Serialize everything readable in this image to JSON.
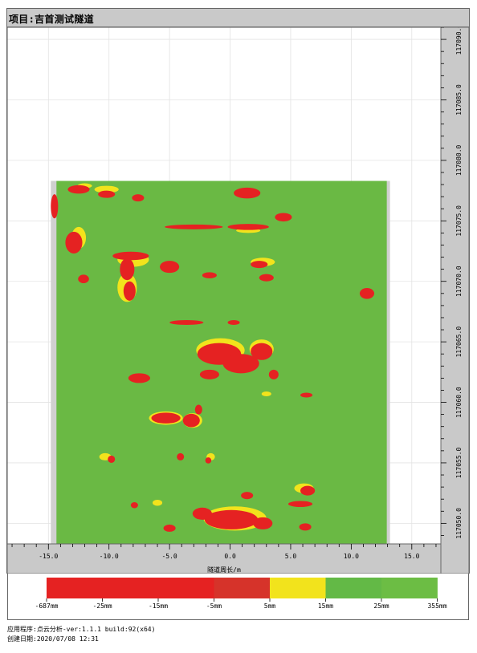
{
  "header": {
    "title": "项目:吉首测试隧道"
  },
  "chart_data": {
    "type": "heatmap",
    "title": "项目:吉首测试隧道",
    "xlabel": "隧道周长/m",
    "ylabel": "",
    "xlim": [
      -18.4,
      17.4
    ],
    "ylim": [
      117048.3,
      117091.0
    ],
    "grid": true,
    "x_ticks": [
      -15,
      -10,
      -5,
      0,
      5,
      10,
      15
    ],
    "x_tick_labels": [
      "-15.0",
      "-10.0",
      "-5.0",
      "0.0",
      "5.0",
      "10.0",
      "15.0"
    ],
    "y_ticks": [
      117050,
      117055,
      117060,
      117065,
      117070,
      117075,
      117080,
      117085,
      117090
    ],
    "y_tick_labels": [
      "117050.0",
      "117055.0",
      "117060.0",
      "117065.0",
      "117070.0",
      "117075.0",
      "117080.0",
      "117085.0",
      "117090.0"
    ],
    "scan_extent": {
      "x": [
        -14.8,
        13.2
      ],
      "y": [
        117048.3,
        117078.3
      ]
    },
    "colorscale": {
      "bins": [
        {
          "from": "-687mm",
          "to": "-25mm",
          "color": "#e52222"
        },
        {
          "from": "-25mm",
          "to": "-15mm",
          "color": "#e52222"
        },
        {
          "from": "-15mm",
          "to": "-5mm",
          "color": "#e52222"
        },
        {
          "from": "-5mm",
          "to": "5mm",
          "color": "#d6332a"
        },
        {
          "from": "5mm",
          "to": "15mm",
          "color": "#f2e31c"
        },
        {
          "from": "15mm",
          "to": "25mm",
          "color": "#63b946"
        },
        {
          "from": "25mm",
          "to": "355mm",
          "color": "#6cbd44"
        }
      ],
      "labels": [
        "-687mm",
        "-25mm",
        "-15mm",
        "-5mm",
        "5mm",
        "15mm",
        "25mm",
        "355mm"
      ]
    },
    "background_color": "#6ab944",
    "margin_color": "#d0d0d0",
    "red_regions": [
      {
        "x": -12.5,
        "y": 117077.6,
        "rx": 0.9,
        "ry": 0.35
      },
      {
        "x": -10.2,
        "y": 117077.2,
        "rx": 0.7,
        "ry": 0.3
      },
      {
        "x": -7.6,
        "y": 117076.9,
        "rx": 0.5,
        "ry": 0.3
      },
      {
        "x": 1.4,
        "y": 117077.3,
        "rx": 1.1,
        "ry": 0.45
      },
      {
        "x": -3.0,
        "y": 117074.5,
        "rx": 2.4,
        "ry": 0.2
      },
      {
        "x": 1.5,
        "y": 117074.5,
        "rx": 1.7,
        "ry": 0.25
      },
      {
        "x": 4.4,
        "y": 117075.3,
        "rx": 0.7,
        "ry": 0.35
      },
      {
        "x": -12.9,
        "y": 117073.2,
        "rx": 0.7,
        "ry": 0.9
      },
      {
        "x": -8.2,
        "y": 117072.1,
        "rx": 1.5,
        "ry": 0.35
      },
      {
        "x": -8.5,
        "y": 117071.0,
        "rx": 0.6,
        "ry": 0.9
      },
      {
        "x": -8.3,
        "y": 117069.2,
        "rx": 0.5,
        "ry": 0.8
      },
      {
        "x": -5.0,
        "y": 117071.2,
        "rx": 0.8,
        "ry": 0.5
      },
      {
        "x": -12.1,
        "y": 117070.2,
        "rx": 0.45,
        "ry": 0.35
      },
      {
        "x": 2.4,
        "y": 117071.4,
        "rx": 0.7,
        "ry": 0.3
      },
      {
        "x": 3.0,
        "y": 117070.3,
        "rx": 0.6,
        "ry": 0.3
      },
      {
        "x": -1.7,
        "y": 117070.5,
        "rx": 0.6,
        "ry": 0.25
      },
      {
        "x": 11.3,
        "y": 117069.0,
        "rx": 0.6,
        "ry": 0.45
      },
      {
        "x": -3.6,
        "y": 117066.6,
        "rx": 1.4,
        "ry": 0.2
      },
      {
        "x": 0.3,
        "y": 117066.6,
        "rx": 0.5,
        "ry": 0.2
      },
      {
        "x": -0.9,
        "y": 117064.0,
        "rx": 1.8,
        "ry": 0.9
      },
      {
        "x": 0.9,
        "y": 117063.2,
        "rx": 1.5,
        "ry": 0.8
      },
      {
        "x": 2.6,
        "y": 117064.2,
        "rx": 0.9,
        "ry": 0.7
      },
      {
        "x": 3.6,
        "y": 117062.3,
        "rx": 0.4,
        "ry": 0.4
      },
      {
        "x": -1.7,
        "y": 117062.3,
        "rx": 0.8,
        "ry": 0.4
      },
      {
        "x": -7.5,
        "y": 117062.0,
        "rx": 0.9,
        "ry": 0.4
      },
      {
        "x": -5.3,
        "y": 117058.7,
        "rx": 1.2,
        "ry": 0.45
      },
      {
        "x": -3.2,
        "y": 117058.5,
        "rx": 0.7,
        "ry": 0.55
      },
      {
        "x": -2.6,
        "y": 117059.4,
        "rx": 0.3,
        "ry": 0.4
      },
      {
        "x": 6.3,
        "y": 117060.6,
        "rx": 0.5,
        "ry": 0.2
      },
      {
        "x": -9.8,
        "y": 117055.3,
        "rx": 0.3,
        "ry": 0.3
      },
      {
        "x": -4.1,
        "y": 117055.5,
        "rx": 0.3,
        "ry": 0.3
      },
      {
        "x": -1.8,
        "y": 117055.2,
        "rx": 0.25,
        "ry": 0.25
      },
      {
        "x": 1.4,
        "y": 117052.3,
        "rx": 0.5,
        "ry": 0.3
      },
      {
        "x": 6.4,
        "y": 117052.7,
        "rx": 0.6,
        "ry": 0.4
      },
      {
        "x": 5.8,
        "y": 117051.6,
        "rx": 1.0,
        "ry": 0.25
      },
      {
        "x": 0.1,
        "y": 117050.3,
        "rx": 2.2,
        "ry": 0.8
      },
      {
        "x": -2.3,
        "y": 117050.8,
        "rx": 0.8,
        "ry": 0.5
      },
      {
        "x": 2.7,
        "y": 117050.0,
        "rx": 0.8,
        "ry": 0.5
      },
      {
        "x": -5.0,
        "y": 117049.6,
        "rx": 0.5,
        "ry": 0.3
      },
      {
        "x": -7.9,
        "y": 117051.5,
        "rx": 0.3,
        "ry": 0.25
      },
      {
        "x": 6.2,
        "y": 117049.7,
        "rx": 0.5,
        "ry": 0.3
      },
      {
        "x": -14.5,
        "y": 117076.2,
        "rx": 0.3,
        "ry": 1.0
      }
    ],
    "yellow_regions": [
      {
        "x": -10.2,
        "y": 117077.6,
        "rx": 1.0,
        "ry": 0.3
      },
      {
        "x": -12.0,
        "y": 117077.9,
        "rx": 0.6,
        "ry": 0.2
      },
      {
        "x": -8.5,
        "y": 117069.5,
        "rx": 0.8,
        "ry": 1.2
      },
      {
        "x": -8.0,
        "y": 117071.8,
        "rx": 1.3,
        "ry": 0.6
      },
      {
        "x": -12.5,
        "y": 117073.6,
        "rx": 0.6,
        "ry": 0.9
      },
      {
        "x": 1.5,
        "y": 117074.2,
        "rx": 1.0,
        "ry": 0.2
      },
      {
        "x": 2.7,
        "y": 117071.6,
        "rx": 1.0,
        "ry": 0.35
      },
      {
        "x": -0.8,
        "y": 117064.3,
        "rx": 2.0,
        "ry": 1.0
      },
      {
        "x": 2.6,
        "y": 117064.4,
        "rx": 1.0,
        "ry": 0.8
      },
      {
        "x": -5.3,
        "y": 117058.7,
        "rx": 1.4,
        "ry": 0.55
      },
      {
        "x": -3.1,
        "y": 117058.5,
        "rx": 0.8,
        "ry": 0.6
      },
      {
        "x": -10.3,
        "y": 117055.5,
        "rx": 0.5,
        "ry": 0.3
      },
      {
        "x": 0.4,
        "y": 117050.4,
        "rx": 2.6,
        "ry": 1.0
      },
      {
        "x": 6.1,
        "y": 117052.9,
        "rx": 0.8,
        "ry": 0.4
      },
      {
        "x": -6.0,
        "y": 117051.7,
        "rx": 0.4,
        "ry": 0.25
      },
      {
        "x": -1.6,
        "y": 117055.5,
        "rx": 0.35,
        "ry": 0.3
      },
      {
        "x": 3.0,
        "y": 117060.7,
        "rx": 0.4,
        "ry": 0.2
      }
    ]
  },
  "footer": {
    "app_line": "应用程序:点云分析-ver:1.1.1 build:92(x64)",
    "date_line": "创建日期:2020/07/08 12:31"
  }
}
